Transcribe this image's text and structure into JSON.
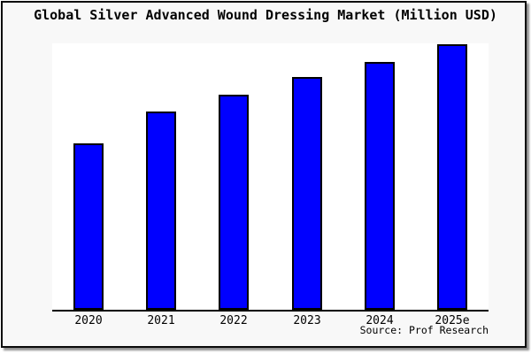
{
  "window": {
    "title": "Global Silver Advanced Wound Dressing Market (Million USD)"
  },
  "chart_data": {
    "type": "bar",
    "title": "Global Silver Advanced Wound Dressing Market (Million USD)",
    "categories": [
      "2020",
      "2021",
      "2022",
      "2023",
      "2024",
      "2025e"
    ],
    "values": [
      62.7,
      74.7,
      81.0,
      87.7,
      93.3,
      100.0
    ],
    "value_scale": "relative height, max bar = 100 (no y-axis tick labels shown in chart)",
    "xlabel": "",
    "ylabel": "",
    "ylim": [
      0,
      100
    ],
    "grid": false,
    "legend": "none",
    "bar_color": "#0000ff",
    "bar_border_color": "#000000",
    "plot_background": "#ffffff",
    "frame_background": "#f8f8f8",
    "axis_line_color": "#000000"
  },
  "footer": {
    "source_label": "Source: Prof Research"
  }
}
